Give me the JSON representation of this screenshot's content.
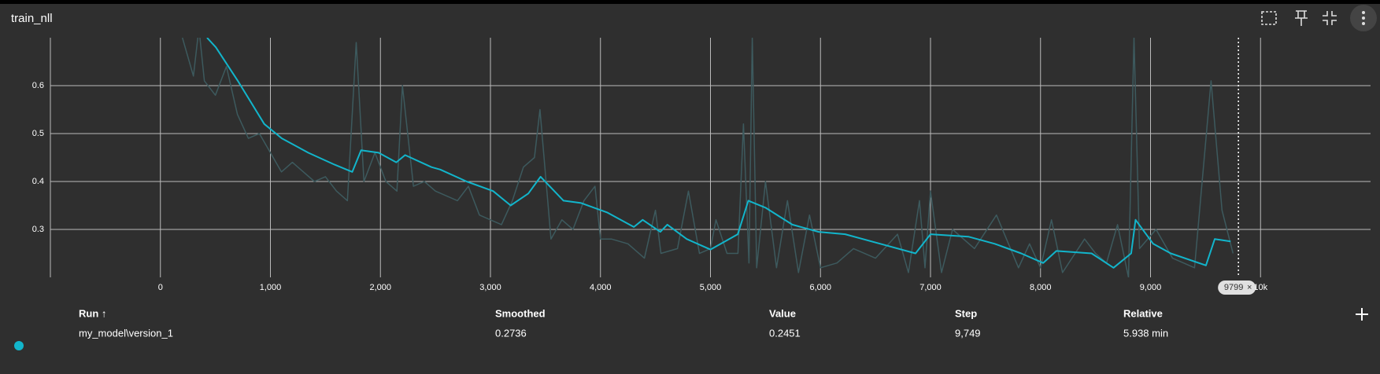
{
  "title": "train_nll",
  "chart_data": {
    "type": "line",
    "xlim": [
      -1000,
      11000
    ],
    "ylim": [
      0.2,
      0.7
    ],
    "xticks": [
      0,
      {
        "value": 1000,
        "label": "1,000"
      },
      {
        "value": 2000,
        "label": "2,000"
      },
      {
        "value": 3000,
        "label": "3,000"
      },
      {
        "value": 4000,
        "label": "4,000"
      },
      {
        "value": 5000,
        "label": "5,000"
      },
      {
        "value": 6000,
        "label": "6,000"
      },
      {
        "value": 7000,
        "label": "7,000"
      },
      {
        "value": 8000,
        "label": "8,000"
      },
      {
        "value": 9000,
        "label": "9,000"
      },
      {
        "value": 10000,
        "label": "10k"
      }
    ],
    "yticks": [
      0.3,
      0.4,
      0.5,
      0.6
    ],
    "grid": true,
    "hover_x": 9799,
    "series": [
      {
        "color": "#3d5a5e",
        "x": [
          200,
          300,
          350,
          400,
          500,
          600,
          700,
          800,
          900,
          1000,
          1100,
          1200,
          1300,
          1400,
          1500,
          1600,
          1700,
          1780,
          1850,
          1950,
          2050,
          2150,
          2200,
          2300,
          2400,
          2500,
          2600,
          2700,
          2800,
          2900,
          3000,
          3100,
          3200,
          3300,
          3400,
          3450,
          3550,
          3650,
          3750,
          3850,
          3950,
          4000,
          4100,
          4250,
          4400,
          4500,
          4550,
          4700,
          4800,
          4900,
          5000,
          5050,
          5150,
          5250,
          5300,
          5350,
          5380,
          5420,
          5500,
          5600,
          5700,
          5800,
          5900,
          6000,
          6150,
          6300,
          6500,
          6700,
          6800,
          6900,
          6950,
          7000,
          7100,
          7200,
          7400,
          7600,
          7800,
          7900,
          8000,
          8100,
          8200,
          8400,
          8500,
          8600,
          8700,
          8800,
          8850,
          8900,
          9050,
          9200,
          9400,
          9550,
          9650,
          9750
        ],
        "values": [
          0.7,
          0.62,
          0.72,
          0.61,
          0.58,
          0.64,
          0.54,
          0.49,
          0.5,
          0.46,
          0.42,
          0.44,
          0.42,
          0.4,
          0.41,
          0.38,
          0.36,
          0.69,
          0.4,
          0.46,
          0.4,
          0.38,
          0.6,
          0.39,
          0.4,
          0.38,
          0.37,
          0.36,
          0.39,
          0.33,
          0.32,
          0.31,
          0.36,
          0.43,
          0.45,
          0.55,
          0.28,
          0.32,
          0.3,
          0.36,
          0.39,
          0.28,
          0.28,
          0.27,
          0.24,
          0.34,
          0.25,
          0.26,
          0.38,
          0.25,
          0.26,
          0.32,
          0.25,
          0.25,
          0.52,
          0.23,
          0.7,
          0.22,
          0.4,
          0.22,
          0.36,
          0.21,
          0.33,
          0.22,
          0.23,
          0.26,
          0.24,
          0.29,
          0.21,
          0.36,
          0.22,
          0.38,
          0.21,
          0.3,
          0.26,
          0.33,
          0.22,
          0.27,
          0.22,
          0.32,
          0.21,
          0.28,
          0.25,
          0.23,
          0.31,
          0.2,
          0.7,
          0.26,
          0.3,
          0.24,
          0.22,
          0.61,
          0.34,
          0.25
        ]
      },
      {
        "color": "#12b5cb",
        "x": [
          424,
          504,
          704,
          944,
          1104,
          1344,
          1584,
          1744,
          1824,
          1984,
          2144,
          2224,
          2464,
          2544,
          2784,
          3024,
          3184,
          3344,
          3456,
          3664,
          3824,
          4064,
          4304,
          4384,
          4544,
          4608,
          4784,
          5000,
          5248,
          5344,
          5504,
          5744,
          5984,
          6224,
          6544,
          6864,
          7000,
          7344,
          7584,
          7824,
          8024,
          8144,
          8464,
          8664,
          8824,
          8864,
          9024,
          9184,
          9504,
          9584,
          9728
        ],
        "values": [
          0.7,
          0.68,
          0.61,
          0.52,
          0.49,
          0.46,
          0.435,
          0.42,
          0.465,
          0.46,
          0.44,
          0.455,
          0.43,
          0.425,
          0.4,
          0.38,
          0.35,
          0.375,
          0.41,
          0.36,
          0.355,
          0.335,
          0.305,
          0.32,
          0.295,
          0.31,
          0.28,
          0.258,
          0.29,
          0.36,
          0.345,
          0.31,
          0.295,
          0.29,
          0.27,
          0.25,
          0.29,
          0.285,
          0.27,
          0.25,
          0.23,
          0.255,
          0.25,
          0.22,
          0.25,
          0.32,
          0.27,
          0.25,
          0.225,
          0.28,
          0.275
        ]
      }
    ]
  },
  "table": {
    "columns": [
      "Run ↑",
      "Smoothed",
      "Value",
      "Step",
      "Relative"
    ],
    "rows": [
      [
        "my_model\\version_1",
        "0.2736",
        "0.2451",
        "9,749",
        "5.938 min"
      ]
    ]
  }
}
